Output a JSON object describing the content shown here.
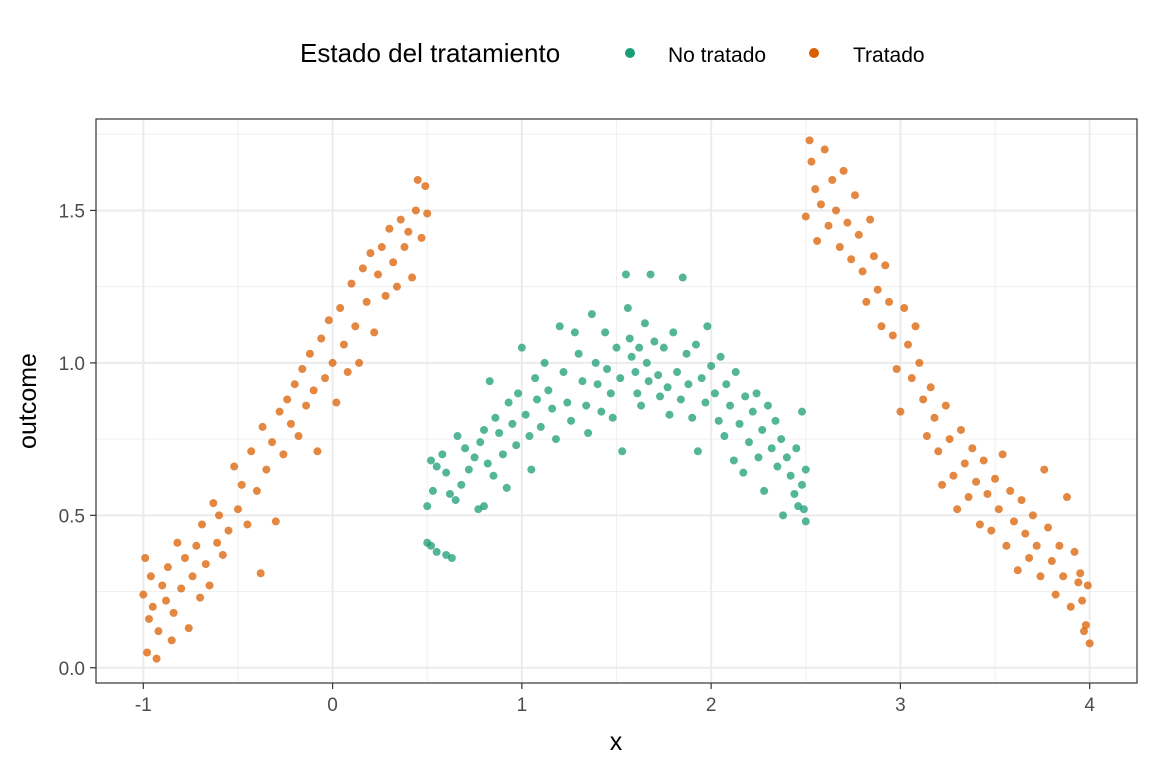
{
  "legend": {
    "title": "Estado del tratamiento",
    "items": [
      {
        "label": "No tratado",
        "color": "#1b9e77"
      },
      {
        "label": "Tratado",
        "color": "#d95f02"
      }
    ]
  },
  "chart_data": {
    "type": "scatter",
    "xlabel": "x",
    "ylabel": "outcome",
    "xlim": [
      -1.25,
      4.25
    ],
    "ylim": [
      -0.05,
      1.8
    ],
    "xticks": [
      -1,
      0,
      1,
      2,
      3,
      4
    ],
    "xtick_labels": [
      "-1",
      "0",
      "1",
      "2",
      "3",
      "4"
    ],
    "yticks": [
      0.0,
      0.5,
      1.0,
      1.5
    ],
    "ytick_labels": [
      "0.0",
      "0.5",
      "1.0",
      "1.5"
    ],
    "grid": true,
    "legend_position": "top",
    "series": [
      {
        "name": "No tratado",
        "color": "#1b9e77",
        "points": [
          [
            0.5,
            0.41
          ],
          [
            0.52,
            0.4
          ],
          [
            0.55,
            0.38
          ],
          [
            0.6,
            0.37
          ],
          [
            0.63,
            0.36
          ],
          [
            0.5,
            0.53
          ],
          [
            0.53,
            0.58
          ],
          [
            0.55,
            0.66
          ],
          [
            0.52,
            0.68
          ],
          [
            0.58,
            0.7
          ],
          [
            0.6,
            0.64
          ],
          [
            0.62,
            0.57
          ],
          [
            0.65,
            0.55
          ],
          [
            0.68,
            0.6
          ],
          [
            0.66,
            0.76
          ],
          [
            0.7,
            0.72
          ],
          [
            0.72,
            0.65
          ],
          [
            0.75,
            0.69
          ],
          [
            0.78,
            0.74
          ],
          [
            0.8,
            0.78
          ],
          [
            0.8,
            0.53
          ],
          [
            0.77,
            0.52
          ],
          [
            0.82,
            0.67
          ],
          [
            0.85,
            0.63
          ],
          [
            0.86,
            0.82
          ],
          [
            0.83,
            0.94
          ],
          [
            0.88,
            0.77
          ],
          [
            0.9,
            0.7
          ],
          [
            0.92,
            0.59
          ],
          [
            0.93,
            0.87
          ],
          [
            0.95,
            0.8
          ],
          [
            0.97,
            0.73
          ],
          [
            0.98,
            0.9
          ],
          [
            1.0,
            1.05
          ],
          [
            1.02,
            0.83
          ],
          [
            1.04,
            0.76
          ],
          [
            1.05,
            0.65
          ],
          [
            1.07,
            0.95
          ],
          [
            1.08,
            0.88
          ],
          [
            1.1,
            0.79
          ],
          [
            1.12,
            1.0
          ],
          [
            1.14,
            0.91
          ],
          [
            1.16,
            0.85
          ],
          [
            1.18,
            0.75
          ],
          [
            1.2,
            1.12
          ],
          [
            1.22,
            0.97
          ],
          [
            1.24,
            0.87
          ],
          [
            1.26,
            0.81
          ],
          [
            1.28,
            1.1
          ],
          [
            1.3,
            1.03
          ],
          [
            1.32,
            0.94
          ],
          [
            1.34,
            0.86
          ],
          [
            1.35,
            0.77
          ],
          [
            1.37,
            1.16
          ],
          [
            1.39,
            1.0
          ],
          [
            1.4,
            0.93
          ],
          [
            1.42,
            0.84
          ],
          [
            1.44,
            1.1
          ],
          [
            1.45,
            0.98
          ],
          [
            1.47,
            0.9
          ],
          [
            1.48,
            0.82
          ],
          [
            1.5,
            1.05
          ],
          [
            1.52,
            0.95
          ],
          [
            1.53,
            0.71
          ],
          [
            1.55,
            1.29
          ],
          [
            1.56,
            1.18
          ],
          [
            1.57,
            1.08
          ],
          [
            1.58,
            1.02
          ],
          [
            1.6,
            0.97
          ],
          [
            1.61,
            0.9
          ],
          [
            1.62,
            1.05
          ],
          [
            1.63,
            0.86
          ],
          [
            1.65,
            1.13
          ],
          [
            1.66,
            1.0
          ],
          [
            1.67,
            0.94
          ],
          [
            1.68,
            1.29
          ],
          [
            1.7,
            1.07
          ],
          [
            1.72,
            0.96
          ],
          [
            1.73,
            0.89
          ],
          [
            1.75,
            1.05
          ],
          [
            1.77,
            0.92
          ],
          [
            1.78,
            0.83
          ],
          [
            1.8,
            1.1
          ],
          [
            1.82,
            0.97
          ],
          [
            1.84,
            0.88
          ],
          [
            1.85,
            1.28
          ],
          [
            1.87,
            1.03
          ],
          [
            1.88,
            0.93
          ],
          [
            1.9,
            0.82
          ],
          [
            1.92,
            1.06
          ],
          [
            1.93,
            0.71
          ],
          [
            1.95,
            0.95
          ],
          [
            1.97,
            0.87
          ],
          [
            1.98,
            1.12
          ],
          [
            2.0,
            0.99
          ],
          [
            2.02,
            0.9
          ],
          [
            2.04,
            0.81
          ],
          [
            2.05,
            1.02
          ],
          [
            2.07,
            0.76
          ],
          [
            2.08,
            0.93
          ],
          [
            2.1,
            0.86
          ],
          [
            2.12,
            0.68
          ],
          [
            2.13,
            0.97
          ],
          [
            2.15,
            0.8
          ],
          [
            2.17,
            0.64
          ],
          [
            2.18,
            0.89
          ],
          [
            2.2,
            0.74
          ],
          [
            2.22,
            0.84
          ],
          [
            2.24,
            0.9
          ],
          [
            2.25,
            0.69
          ],
          [
            2.27,
            0.78
          ],
          [
            2.28,
            0.58
          ],
          [
            2.3,
            0.86
          ],
          [
            2.32,
            0.72
          ],
          [
            2.34,
            0.81
          ],
          [
            2.35,
            0.66
          ],
          [
            2.37,
            0.75
          ],
          [
            2.38,
            0.5
          ],
          [
            2.4,
            0.69
          ],
          [
            2.42,
            0.63
          ],
          [
            2.44,
            0.57
          ],
          [
            2.45,
            0.72
          ],
          [
            2.46,
            0.53
          ],
          [
            2.48,
            0.6
          ],
          [
            2.48,
            0.84
          ],
          [
            2.5,
            0.65
          ],
          [
            2.5,
            0.48
          ],
          [
            2.49,
            0.52
          ]
        ]
      },
      {
        "name": "Tratado",
        "color": "#d95f02",
        "points": [
          [
            -1.0,
            0.24
          ],
          [
            -0.99,
            0.36
          ],
          [
            -0.98,
            0.05
          ],
          [
            -0.97,
            0.16
          ],
          [
            -0.96,
            0.3
          ],
          [
            -0.95,
            0.2
          ],
          [
            -0.93,
            0.03
          ],
          [
            -0.92,
            0.12
          ],
          [
            -0.9,
            0.27
          ],
          [
            -0.88,
            0.22
          ],
          [
            -0.87,
            0.33
          ],
          [
            -0.85,
            0.09
          ],
          [
            -0.84,
            0.18
          ],
          [
            -0.82,
            0.41
          ],
          [
            -0.8,
            0.26
          ],
          [
            -0.78,
            0.36
          ],
          [
            -0.76,
            0.13
          ],
          [
            -0.74,
            0.3
          ],
          [
            -0.72,
            0.4
          ],
          [
            -0.7,
            0.23
          ],
          [
            -0.69,
            0.47
          ],
          [
            -0.67,
            0.34
          ],
          [
            -0.65,
            0.27
          ],
          [
            -0.63,
            0.54
          ],
          [
            -0.61,
            0.41
          ],
          [
            -0.6,
            0.5
          ],
          [
            -0.58,
            0.37
          ],
          [
            -0.55,
            0.45
          ],
          [
            -0.52,
            0.66
          ],
          [
            -0.5,
            0.52
          ],
          [
            -0.48,
            0.6
          ],
          [
            -0.45,
            0.47
          ],
          [
            -0.43,
            0.71
          ],
          [
            -0.4,
            0.58
          ],
          [
            -0.38,
            0.31
          ],
          [
            -0.37,
            0.79
          ],
          [
            -0.35,
            0.65
          ],
          [
            -0.32,
            0.74
          ],
          [
            -0.3,
            0.48
          ],
          [
            -0.28,
            0.84
          ],
          [
            -0.26,
            0.7
          ],
          [
            -0.24,
            0.88
          ],
          [
            -0.22,
            0.8
          ],
          [
            -0.2,
            0.93
          ],
          [
            -0.18,
            0.76
          ],
          [
            -0.16,
            0.98
          ],
          [
            -0.14,
            0.86
          ],
          [
            -0.12,
            1.03
          ],
          [
            -0.1,
            0.91
          ],
          [
            -0.08,
            0.71
          ],
          [
            -0.06,
            1.08
          ],
          [
            -0.04,
            0.95
          ],
          [
            -0.02,
            1.14
          ],
          [
            0.0,
            1.0
          ],
          [
            0.02,
            0.87
          ],
          [
            0.04,
            1.18
          ],
          [
            0.06,
            1.06
          ],
          [
            0.08,
            0.97
          ],
          [
            0.1,
            1.26
          ],
          [
            0.12,
            1.12
          ],
          [
            0.14,
            1.0
          ],
          [
            0.16,
            1.31
          ],
          [
            0.18,
            1.2
          ],
          [
            0.2,
            1.36
          ],
          [
            0.22,
            1.1
          ],
          [
            0.24,
            1.29
          ],
          [
            0.26,
            1.38
          ],
          [
            0.28,
            1.22
          ],
          [
            0.3,
            1.44
          ],
          [
            0.32,
            1.33
          ],
          [
            0.34,
            1.25
          ],
          [
            0.36,
            1.47
          ],
          [
            0.38,
            1.38
          ],
          [
            0.4,
            1.43
          ],
          [
            0.42,
            1.28
          ],
          [
            0.44,
            1.5
          ],
          [
            0.45,
            1.6
          ],
          [
            0.47,
            1.41
          ],
          [
            0.49,
            1.58
          ],
          [
            0.5,
            1.49
          ],
          [
            2.5,
            1.48
          ],
          [
            2.52,
            1.73
          ],
          [
            2.53,
            1.66
          ],
          [
            2.55,
            1.57
          ],
          [
            2.56,
            1.4
          ],
          [
            2.58,
            1.52
          ],
          [
            2.6,
            1.7
          ],
          [
            2.62,
            1.45
          ],
          [
            2.64,
            1.6
          ],
          [
            2.66,
            1.5
          ],
          [
            2.68,
            1.38
          ],
          [
            2.7,
            1.63
          ],
          [
            2.72,
            1.46
          ],
          [
            2.74,
            1.34
          ],
          [
            2.76,
            1.55
          ],
          [
            2.78,
            1.42
          ],
          [
            2.8,
            1.3
          ],
          [
            2.82,
            1.2
          ],
          [
            2.84,
            1.47
          ],
          [
            2.86,
            1.35
          ],
          [
            2.88,
            1.24
          ],
          [
            2.9,
            1.12
          ],
          [
            2.92,
            1.32
          ],
          [
            2.94,
            1.2
          ],
          [
            2.96,
            1.09
          ],
          [
            2.98,
            0.98
          ],
          [
            3.0,
            0.84
          ],
          [
            3.02,
            1.18
          ],
          [
            3.04,
            1.06
          ],
          [
            3.06,
            0.95
          ],
          [
            3.08,
            1.12
          ],
          [
            3.1,
            1.0
          ],
          [
            3.12,
            0.88
          ],
          [
            3.14,
            0.76
          ],
          [
            3.16,
            0.92
          ],
          [
            3.18,
            0.82
          ],
          [
            3.2,
            0.71
          ],
          [
            3.22,
            0.6
          ],
          [
            3.24,
            0.86
          ],
          [
            3.26,
            0.75
          ],
          [
            3.28,
            0.63
          ],
          [
            3.3,
            0.52
          ],
          [
            3.32,
            0.78
          ],
          [
            3.34,
            0.67
          ],
          [
            3.36,
            0.56
          ],
          [
            3.38,
            0.72
          ],
          [
            3.4,
            0.61
          ],
          [
            3.42,
            0.47
          ],
          [
            3.44,
            0.68
          ],
          [
            3.46,
            0.57
          ],
          [
            3.48,
            0.45
          ],
          [
            3.5,
            0.62
          ],
          [
            3.52,
            0.52
          ],
          [
            3.54,
            0.7
          ],
          [
            3.56,
            0.4
          ],
          [
            3.58,
            0.58
          ],
          [
            3.6,
            0.48
          ],
          [
            3.62,
            0.32
          ],
          [
            3.64,
            0.55
          ],
          [
            3.66,
            0.44
          ],
          [
            3.68,
            0.36
          ],
          [
            3.7,
            0.5
          ],
          [
            3.72,
            0.4
          ],
          [
            3.74,
            0.3
          ],
          [
            3.76,
            0.65
          ],
          [
            3.78,
            0.46
          ],
          [
            3.8,
            0.35
          ],
          [
            3.82,
            0.24
          ],
          [
            3.84,
            0.4
          ],
          [
            3.86,
            0.3
          ],
          [
            3.88,
            0.56
          ],
          [
            3.9,
            0.2
          ],
          [
            3.92,
            0.38
          ],
          [
            3.94,
            0.28
          ],
          [
            3.96,
            0.22
          ],
          [
            3.98,
            0.14
          ],
          [
            3.99,
            0.27
          ],
          [
            4.0,
            0.08
          ],
          [
            3.97,
            0.12
          ],
          [
            3.95,
            0.31
          ]
        ]
      }
    ]
  }
}
